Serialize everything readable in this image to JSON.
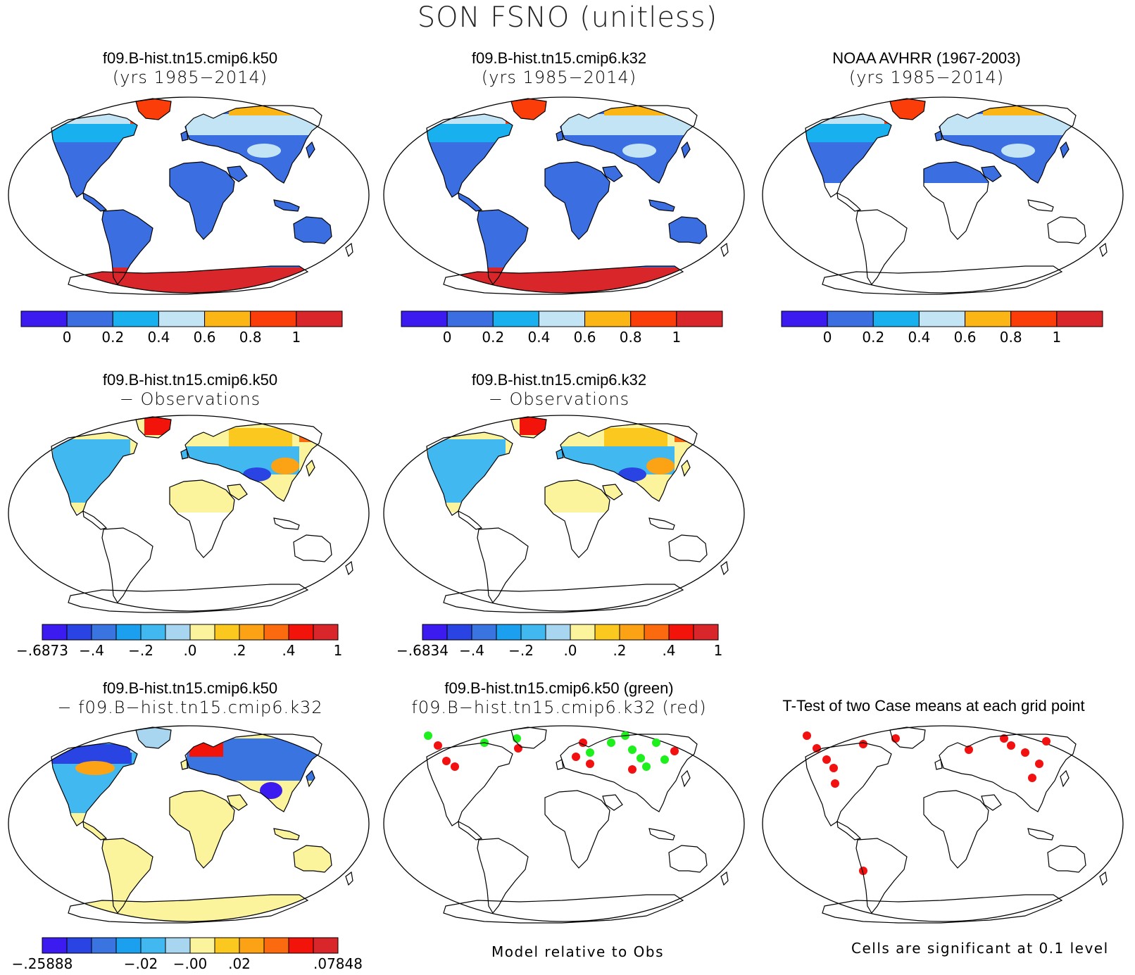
{
  "title": "SON FSNO (unitless)",
  "colors": {
    "abs": [
      "#3b1bf0",
      "#3b6ee0",
      "#19b0f0",
      "#c3e4f5",
      "#fbb515",
      "#fb3d0a",
      "#d8262a"
    ],
    "diff": [
      "#3b1bf0",
      "#2944e2",
      "#3a74e0",
      "#1ba0ef",
      "#42b8f0",
      "#a8d6f0",
      "#fbf49c",
      "#fbc820",
      "#fba215",
      "#fb6a0e",
      "#f2140a",
      "#d8262a"
    ],
    "land_blue": "#3b6ee0",
    "ice_red": "#d8262a",
    "diff_yellow": "#fbf49c",
    "sig_green": "#1ef01e",
    "sig_red": "#f21010"
  },
  "panels": [
    {
      "id": "k50-mean",
      "line1": "f09.B-hist.tn15.cmip6.k50",
      "line2": "(yrs 1985−2014)",
      "fill": "abs"
    },
    {
      "id": "k32-mean",
      "line1": "f09.B-hist.tn15.cmip6.k32",
      "line2": "(yrs 1985−2014)",
      "fill": "abs"
    },
    {
      "id": "obs-mean",
      "line1": "NOAA AVHRR (1967-2003)",
      "line2": "(yrs 1985−2014)",
      "fill": "obs"
    },
    {
      "id": "k50-minus-obs",
      "line1": "f09.B-hist.tn15.cmip6.k50",
      "line2": "− Observations",
      "fill": "diff-obs"
    },
    {
      "id": "k32-minus-obs",
      "line1": "f09.B-hist.tn15.cmip6.k32",
      "line2": "− Observations",
      "fill": "diff-obs"
    },
    {
      "id": "k50-minus-k32",
      "line1": "f09.B-hist.tn15.cmip6.k50",
      "line2": "− f09.B−hist.tn15.cmip6.k32",
      "fill": "diff-case"
    },
    {
      "id": "sig-model-obs",
      "line1": "f09.B-hist.tn15.cmip6.k50 (green)",
      "line2": "f09.B−hist.tn15.cmip6.k32 (red)",
      "fill": "sig-two"
    },
    {
      "id": "ttest",
      "line1": "T-Test of two Case means at each grid point",
      "line2": "",
      "fill": "sig-one"
    }
  ],
  "colorbars": [
    {
      "id": "cbar-k50",
      "kind": "abs",
      "labels": [
        "0",
        "0.2",
        "0.4",
        "0.6",
        "0.8",
        "1"
      ]
    },
    {
      "id": "cbar-k32",
      "kind": "abs",
      "labels": [
        "0",
        "0.2",
        "0.4",
        "0.6",
        "0.8",
        "1"
      ]
    },
    {
      "id": "cbar-obs",
      "kind": "abs",
      "labels": [
        "0",
        "0.2",
        "0.4",
        "0.6",
        "0.8",
        "1"
      ]
    },
    {
      "id": "cbar-k50-obs",
      "kind": "diff",
      "labels": [
        "−.6873",
        "−.4",
        "−.2",
        ".0",
        ".2",
        ".4",
        "1"
      ]
    },
    {
      "id": "cbar-k32-obs",
      "kind": "diff",
      "labels": [
        "−.6834",
        "−.4",
        "−.2",
        ".0",
        ".2",
        ".4",
        "1"
      ]
    },
    {
      "id": "cbar-k50-k32",
      "kind": "diff",
      "labels": [
        "−.25888",
        "−.02",
        "−.00",
        ".02",
        ".07848"
      ]
    }
  ],
  "footnotes": {
    "model_vs_obs": "Model relative to Obs",
    "significance": "Cells are significant at 0.1 level"
  }
}
